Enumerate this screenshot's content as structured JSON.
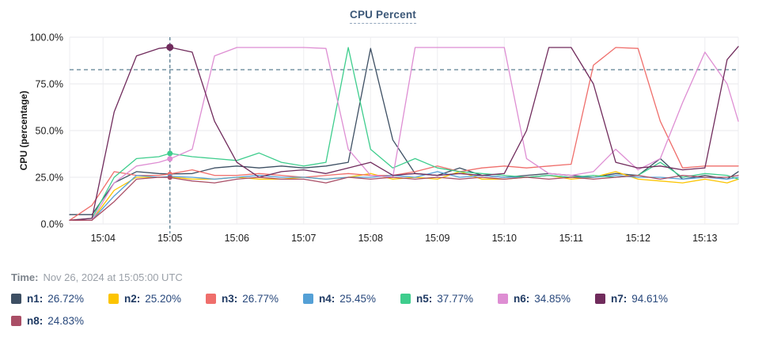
{
  "title": "CPU Percent",
  "yaxis_label": "CPU (percentage)",
  "time_row": {
    "label": "Time:",
    "value": "Nov 26, 2024 at 15:05:00 UTC"
  },
  "legend": [
    {
      "name": "n1:",
      "value": "26.72%",
      "color": "#3d4f63"
    },
    {
      "name": "n2:",
      "value": "25.20%",
      "color": "#fcc400"
    },
    {
      "name": "n3:",
      "value": "26.77%",
      "color": "#ef6e6b"
    },
    {
      "name": "n4:",
      "value": "25.45%",
      "color": "#54a0d6"
    },
    {
      "name": "n5:",
      "value": "37.77%",
      "color": "#3ecd8d"
    },
    {
      "name": "n6:",
      "value": "34.85%",
      "color": "#de8ed3"
    },
    {
      "name": "n7:",
      "value": "94.61%",
      "color": "#702b5c"
    },
    {
      "name": "n8:",
      "value": "24.83%",
      "color": "#aa4e66"
    }
  ],
  "chart_data": {
    "type": "line",
    "title": "CPU Percent",
    "xlabel": "",
    "ylabel": "CPU (percentage)",
    "ylim": [
      0,
      100
    ],
    "grid": true,
    "legend_position": "bottom",
    "yticks": [
      {
        "value": 0,
        "label": "0.0%"
      },
      {
        "value": 25,
        "label": "25.0%"
      },
      {
        "value": 50,
        "label": "50.0%"
      },
      {
        "value": 75,
        "label": "75.0%"
      },
      {
        "value": 100,
        "label": "100.0%"
      }
    ],
    "xticks": [
      "15:04",
      "15:05",
      "15:06",
      "15:07",
      "15:08",
      "15:09",
      "15:10",
      "15:11",
      "15:12",
      "15:13"
    ],
    "threshold_line": {
      "value": 82.6,
      "style": "dashed",
      "color": "#4a7287"
    },
    "crosshair_time": "15:05:00",
    "crosshair_color": "#4a7287",
    "x": [
      "15:03:30",
      "15:03:50",
      "15:04:10",
      "15:04:30",
      "15:04:50",
      "15:05:00",
      "15:05:20",
      "15:05:40",
      "15:06:00",
      "15:06:20",
      "15:06:40",
      "15:07:00",
      "15:07:20",
      "15:07:40",
      "15:08:00",
      "15:08:20",
      "15:08:40",
      "15:09:00",
      "15:09:20",
      "15:09:40",
      "15:10:00",
      "15:10:20",
      "15:10:40",
      "15:11:00",
      "15:11:20",
      "15:11:40",
      "15:12:00",
      "15:12:20",
      "15:12:40",
      "15:13:00",
      "15:13:20",
      "15:13:30"
    ],
    "series": [
      {
        "name": "n1",
        "color": "#3d4f63",
        "values": [
          5,
          5,
          22,
          28,
          27,
          26.72,
          27,
          30,
          31,
          30,
          31,
          30,
          31,
          33,
          94,
          45,
          27,
          26,
          30,
          26,
          25,
          26,
          27,
          26,
          25,
          27,
          26,
          35,
          24,
          26,
          24,
          28
        ]
      },
      {
        "name": "n2",
        "color": "#fcc400",
        "values": [
          2,
          2,
          18,
          25,
          25,
          25.2,
          24,
          24,
          25,
          24,
          24,
          25,
          24,
          25,
          27,
          24,
          25,
          24,
          28,
          24,
          24,
          25,
          26,
          24,
          25,
          28,
          24,
          23,
          22,
          24,
          22,
          24
        ]
      },
      {
        "name": "n3",
        "color": "#ef6e6b",
        "values": [
          2,
          10,
          28,
          26,
          26,
          26.77,
          29,
          26,
          26,
          27,
          26,
          25,
          26,
          27,
          26,
          26,
          28,
          31,
          28,
          30,
          31,
          30,
          31,
          32,
          85,
          94.5,
          94,
          55,
          30,
          31,
          31,
          31
        ]
      },
      {
        "name": "n4",
        "color": "#54a0d6",
        "values": [
          2,
          2,
          15,
          26,
          25,
          25.45,
          25,
          24,
          25,
          26,
          25,
          25,
          24,
          25,
          25,
          26,
          25,
          28,
          25,
          26,
          25,
          25,
          26,
          25,
          25,
          26,
          25,
          25,
          24,
          25,
          24,
          25
        ]
      },
      {
        "name": "n5",
        "color": "#3ecd8d",
        "values": [
          2,
          3,
          25,
          35,
          36,
          37.77,
          36,
          35,
          34,
          38,
          33,
          31,
          33,
          94.5,
          40,
          30,
          35,
          30,
          28,
          27,
          26,
          25,
          26,
          25,
          26,
          25,
          26,
          33,
          25,
          27,
          26,
          24
        ]
      },
      {
        "name": "n6",
        "color": "#de8ed3",
        "values": [
          2,
          2,
          22,
          31,
          33,
          34.85,
          40,
          90,
          94.5,
          94.5,
          94.5,
          94.5,
          94,
          40,
          26,
          25,
          94.5,
          94.5,
          94.5,
          94.5,
          94.5,
          35,
          27,
          26,
          28,
          40,
          29,
          35,
          65,
          92,
          75,
          55
        ]
      },
      {
        "name": "n7",
        "color": "#702b5c",
        "values": [
          2,
          3,
          60,
          90,
          94,
          94.61,
          92,
          55,
          33,
          25,
          28,
          29,
          27,
          30,
          33,
          26,
          27,
          26,
          27,
          26,
          27,
          50,
          94.5,
          94.5,
          75,
          33,
          30,
          31,
          29,
          30,
          88,
          95
        ]
      },
      {
        "name": "n8",
        "color": "#aa4e66",
        "values": [
          2,
          2,
          12,
          24,
          25,
          24.83,
          23,
          22,
          24,
          25,
          24,
          24,
          22,
          25,
          24,
          25,
          24,
          25,
          24,
          25,
          24,
          25,
          24,
          25,
          24,
          25,
          26,
          24,
          26,
          25,
          25,
          26
        ]
      }
    ]
  }
}
